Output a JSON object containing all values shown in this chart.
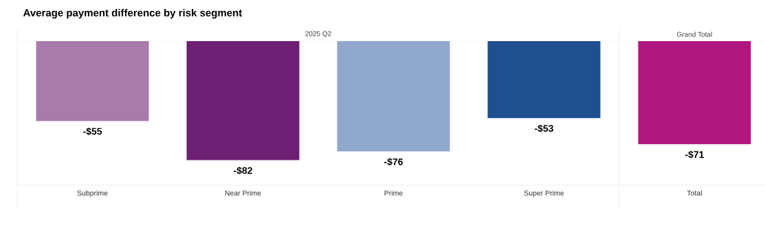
{
  "chart_data": {
    "type": "bar",
    "title": "Average payment difference by risk segment",
    "categories": [
      "Subprime",
      "Near Prime",
      "Prime",
      "Super Prime",
      "Total"
    ],
    "values": [
      -55,
      -82,
      -76,
      -53,
      -71
    ],
    "colors": [
      "#a87bab",
      "#6d1f73",
      "#8fa8cc",
      "#1f4f8f",
      "#b0177f"
    ],
    "value_labels": [
      "-$55",
      "-$82",
      "-$76",
      "-$53",
      "-$71"
    ],
    "annotations": [
      "2025 Q2",
      "Grand Total"
    ]
  }
}
